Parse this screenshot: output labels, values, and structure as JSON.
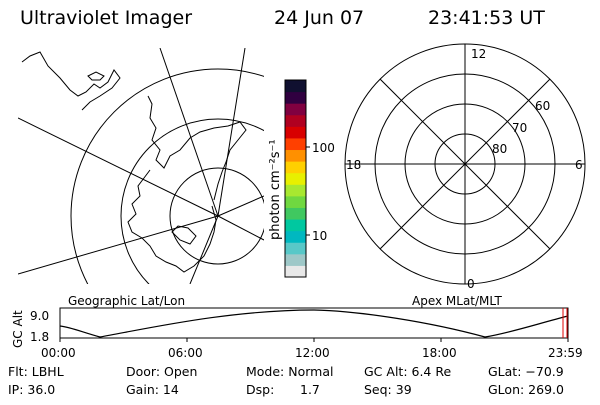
{
  "header": {
    "title": "Ultraviolet Imager",
    "date": "24 Jun 07",
    "time": "23:41:53 UT"
  },
  "colorbar": {
    "unit_label": "photon cm⁻²s⁻¹",
    "tick_labels": [
      "100",
      "10"
    ],
    "colors": [
      "#e8e8e8",
      "#9ec8c8",
      "#58c8c8",
      "#00b8c0",
      "#00c8a0",
      "#40c860",
      "#70d840",
      "#a8e830",
      "#e8f000",
      "#ffd000",
      "#ff9000",
      "#ff4000",
      "#d80000",
      "#b00020",
      "#800040",
      "#300040",
      "#101030"
    ]
  },
  "polar_grid": {
    "mlt_labels": {
      "top": "12",
      "right": "6",
      "bottom": "0",
      "left": "18"
    },
    "mlat_labels": [
      "60",
      "70",
      "80"
    ]
  },
  "altitude_plot": {
    "left_title": "Geographic Lat/Lon",
    "right_title": "Apex MLat/MLT",
    "ylabel": "GC Alt",
    "y_ticks": [
      "9.0",
      "1.8"
    ],
    "x_ticks": [
      "00:00",
      "06:00",
      "12:00",
      "18:00",
      "23:59"
    ],
    "marker_color": "#e00000"
  },
  "status": {
    "filter": "Flt: LBHL",
    "door": "Door: Open",
    "mode": "Mode: Normal",
    "gc_alt": "GC Alt: 6.4 Re",
    "glat": "GLat: −70.9",
    "ip": "IP: 36.0",
    "gain": "Gain: 14",
    "dsp_label": "Dsp:",
    "dsp_value": "1.7",
    "seq": "Seq: 39",
    "glon": "GLon: 269.0"
  }
}
